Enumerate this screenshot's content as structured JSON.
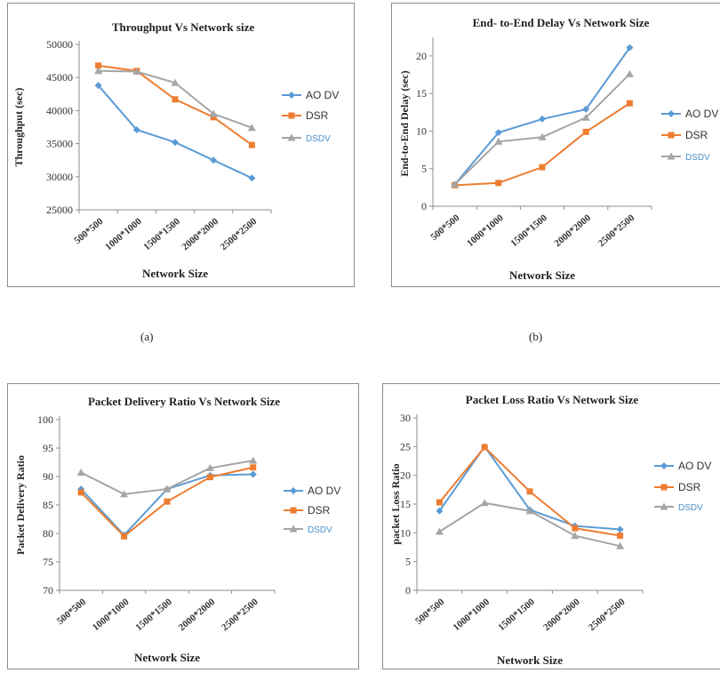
{
  "captions": {
    "a": "(a)",
    "b": "(b)"
  },
  "chart_data": [
    {
      "type": "line",
      "title": "Throughput Vs Network size",
      "xlabel": "Network Size",
      "ylabel": "Throughput (sec)",
      "categories": [
        "500*500",
        "1000*1000",
        "1500*1500",
        "2000*2000",
        "2500*2500"
      ],
      "ylim": [
        25000,
        50000
      ],
      "yticks": [
        25000,
        30000,
        35000,
        40000,
        45000,
        50000
      ],
      "grid": false,
      "legend_position": "right",
      "series": [
        {
          "name": "AODV",
          "color": "#5b9bd5",
          "marker": "diamond",
          "values": [
            43800,
            37100,
            35200,
            32500,
            29800
          ]
        },
        {
          "name": "DSR",
          "color": "#ed7d31",
          "marker": "square",
          "values": [
            46800,
            46000,
            41700,
            39000,
            34800
          ]
        },
        {
          "name": "DSDV",
          "color": "#a5a5a5",
          "marker": "triangle",
          "values": [
            46000,
            45900,
            44200,
            39500,
            37400
          ]
        }
      ]
    },
    {
      "type": "line",
      "title": "End- to-End Delay Vs Network Size",
      "xlabel": "Network Size",
      "ylabel": "End-to-End Delay (sec)",
      "categories": [
        "500*500",
        "1000*1000",
        "1500*1500",
        "2000*2000",
        "2500*2500"
      ],
      "ylim": [
        0,
        22
      ],
      "yticks": [
        0,
        5,
        10,
        15,
        20
      ],
      "grid": false,
      "legend_position": "right",
      "series": [
        {
          "name": "AODV",
          "color": "#5b9bd5",
          "marker": "diamond",
          "values": [
            2.9,
            9.8,
            11.6,
            12.9,
            21.1
          ]
        },
        {
          "name": "DSR",
          "color": "#ed7d31",
          "marker": "square",
          "values": [
            2.8,
            3.1,
            5.2,
            9.9,
            13.7
          ]
        },
        {
          "name": "DSDV",
          "color": "#a5a5a5",
          "marker": "triangle",
          "values": [
            2.9,
            8.6,
            9.2,
            11.8,
            17.6
          ]
        }
      ]
    },
    {
      "type": "line",
      "title": "Packet Delivery Ratio Vs Network Size",
      "xlabel": "Network Size",
      "ylabel": "Packet Delivery Ratio",
      "categories": [
        "500*500",
        "1000*1000",
        "1500*1500",
        "2000*2000",
        "2500*2500"
      ],
      "ylim": [
        70,
        100
      ],
      "yticks": [
        70,
        75,
        80,
        85,
        90,
        95,
        100
      ],
      "grid": false,
      "legend_position": "right",
      "series": [
        {
          "name": "AODV",
          "color": "#5b9bd5",
          "marker": "diamond",
          "values": [
            87.8,
            79.7,
            87.8,
            90.2,
            90.4
          ]
        },
        {
          "name": "DSR",
          "color": "#ed7d31",
          "marker": "square",
          "values": [
            87.2,
            79.5,
            85.6,
            89.9,
            91.6
          ]
        },
        {
          "name": "DSDV",
          "color": "#a5a5a5",
          "marker": "triangle",
          "values": [
            90.7,
            86.9,
            87.8,
            91.5,
            92.8
          ]
        }
      ]
    },
    {
      "type": "line",
      "title": "Packet Loss Ratio Vs Network Size",
      "xlabel": "Network Size",
      "ylabel": "packet Loss Ratio",
      "categories": [
        "500*500",
        "1000*1000",
        "1500*1500",
        "2000*2000",
        "2500*2500"
      ],
      "ylim": [
        0,
        30
      ],
      "yticks": [
        0,
        5,
        10,
        15,
        20,
        25,
        30
      ],
      "grid": false,
      "legend_position": "right",
      "series": [
        {
          "name": "AODV",
          "color": "#5b9bd5",
          "marker": "diamond",
          "values": [
            13.8,
            25.0,
            14.0,
            11.2,
            10.6
          ]
        },
        {
          "name": "DSR",
          "color": "#ed7d31",
          "marker": "square",
          "values": [
            15.3,
            24.9,
            17.2,
            10.8,
            9.5
          ]
        },
        {
          "name": "DSDV",
          "color": "#a5a5a5",
          "marker": "triangle",
          "values": [
            10.2,
            15.2,
            13.8,
            9.5,
            7.7
          ]
        }
      ]
    }
  ],
  "legend_labels": [
    "AO DV",
    "DSR",
    "DSDV"
  ]
}
